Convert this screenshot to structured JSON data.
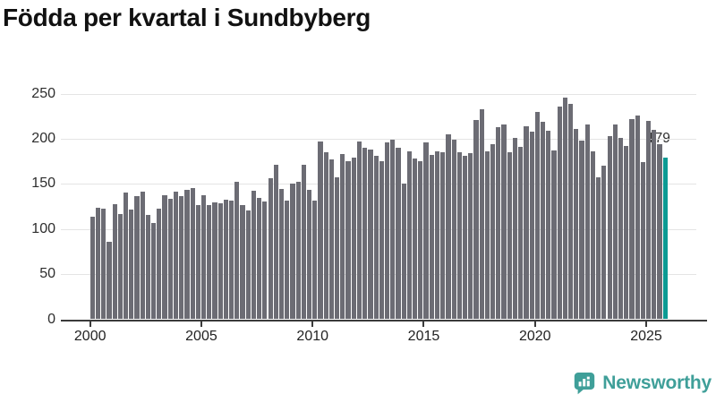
{
  "title": "Födda per kvartal i Sundbyberg",
  "chart_data": {
    "type": "bar",
    "title": "Födda per kvartal i Sundbyberg",
    "frequency": "quarterly",
    "start_period": "2000 Q1",
    "end_period": "2025 Q4",
    "values": [
      114,
      124,
      123,
      86,
      127,
      117,
      140,
      122,
      136,
      141,
      116,
      107,
      123,
      137,
      133,
      141,
      136,
      143,
      145,
      126,
      137,
      126,
      129,
      128,
      132,
      131,
      152,
      126,
      121,
      142,
      134,
      130,
      156,
      171,
      144,
      131,
      150,
      152,
      171,
      143,
      131,
      197,
      185,
      177,
      157,
      183,
      175,
      179,
      197,
      190,
      188,
      181,
      175,
      196,
      199,
      190,
      150,
      186,
      178,
      175,
      196,
      182,
      186,
      185,
      205,
      199,
      185,
      181,
      184,
      221,
      233,
      186,
      194,
      213,
      216,
      185,
      201,
      191,
      214,
      208,
      230,
      219,
      209,
      187,
      236,
      246,
      239,
      211,
      198,
      216,
      186,
      157,
      170,
      203,
      216,
      201,
      192,
      222,
      226,
      174,
      220,
      210,
      194,
      179
    ],
    "highlight_last": true,
    "last_value_label": "179",
    "bar_color": "#6c6c74",
    "highlight_color": "#0c9a93",
    "ylim": [
      0,
      250
    ],
    "yticks": [
      0,
      50,
      100,
      150,
      200,
      250
    ],
    "xticks": [
      "2000",
      "2005",
      "2010",
      "2015",
      "2020",
      "2025"
    ],
    "grid": "horizontal",
    "legend": "none"
  },
  "annotation": {
    "label": "179"
  },
  "branding": {
    "name": "Newsworthy",
    "logo_icon": "speech-bubble-bar-chart-icon",
    "color": "#3f9f99"
  }
}
